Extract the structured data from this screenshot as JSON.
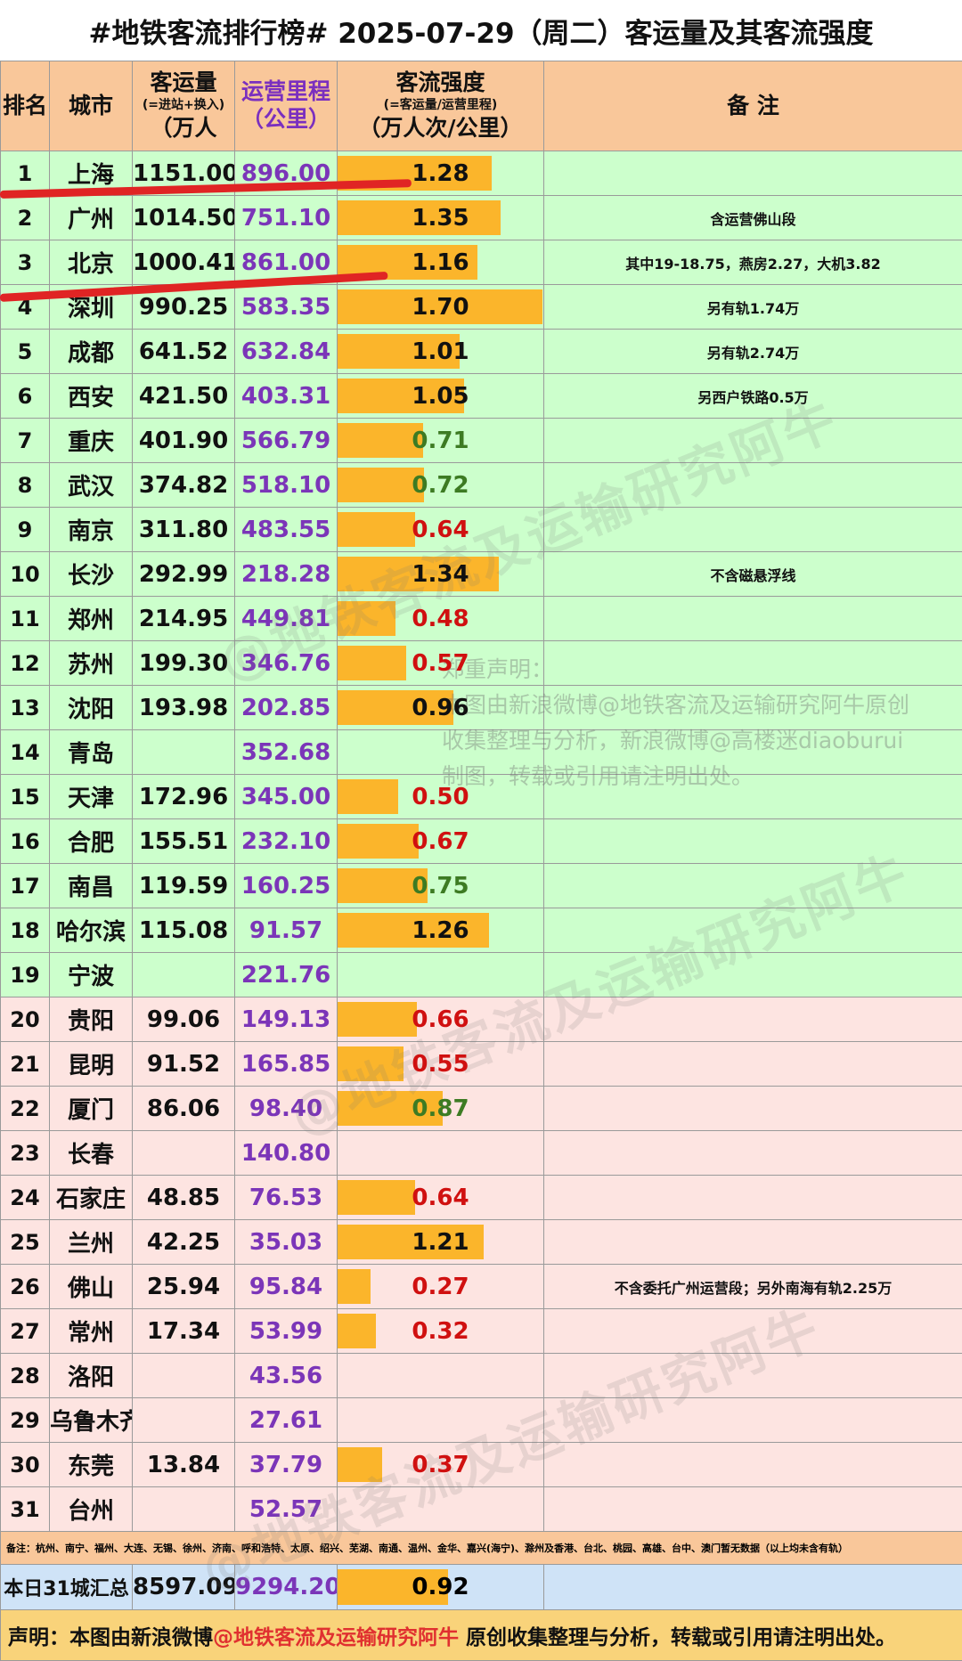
{
  "title": "#地铁客流排行榜# 2025-07-29（周二）客运量及其客流强度",
  "headers": {
    "rank": "排名",
    "city": "城市",
    "volume_l1": "客运量",
    "volume_l2": "(=进站+换入)",
    "volume_l3": "（万人",
    "mileage_l1": "运营里程",
    "mileage_l3": "（公里）",
    "intensity_l1": "客流强度",
    "intensity_l2": "(=客运量/运营里程)",
    "intensity_l3": "（万人次/公里）",
    "note": "备  注"
  },
  "rows": [
    {
      "rank": "1",
      "city": "上海",
      "volume": "1151.00",
      "mileage": "896.00",
      "intensity": "1.28",
      "intensity_value": 1.28,
      "note": ""
    },
    {
      "rank": "2",
      "city": "广州",
      "volume": "1014.50",
      "mileage": "751.10",
      "intensity": "1.35",
      "intensity_value": 1.35,
      "note": "含运营佛山段"
    },
    {
      "rank": "3",
      "city": "北京",
      "volume": "1000.41",
      "mileage": "861.00",
      "intensity": "1.16",
      "intensity_value": 1.16,
      "note": "其中19-18.75，燕房2.27，大机3.82"
    },
    {
      "rank": "4",
      "city": "深圳",
      "volume": "990.25",
      "mileage": "583.35",
      "intensity": "1.70",
      "intensity_value": 1.7,
      "note": "另有轨1.74万"
    },
    {
      "rank": "5",
      "city": "成都",
      "volume": "641.52",
      "mileage": "632.84",
      "intensity": "1.01",
      "intensity_value": 1.01,
      "note": "另有轨2.74万"
    },
    {
      "rank": "6",
      "city": "西安",
      "volume": "421.50",
      "mileage": "403.31",
      "intensity": "1.05",
      "intensity_value": 1.05,
      "note": "另西户铁路0.5万"
    },
    {
      "rank": "7",
      "city": "重庆",
      "volume": "401.90",
      "mileage": "566.79",
      "intensity": "0.71",
      "intensity_value": 0.71,
      "note": ""
    },
    {
      "rank": "8",
      "city": "武汉",
      "volume": "374.82",
      "mileage": "518.10",
      "intensity": "0.72",
      "intensity_value": 0.72,
      "note": ""
    },
    {
      "rank": "9",
      "city": "南京",
      "volume": "311.80",
      "mileage": "483.55",
      "intensity": "0.64",
      "intensity_value": 0.64,
      "note": ""
    },
    {
      "rank": "10",
      "city": "长沙",
      "volume": "292.99",
      "mileage": "218.28",
      "intensity": "1.34",
      "intensity_value": 1.34,
      "note": "不含磁悬浮线"
    },
    {
      "rank": "11",
      "city": "郑州",
      "volume": "214.95",
      "mileage": "449.81",
      "intensity": "0.48",
      "intensity_value": 0.48,
      "note": ""
    },
    {
      "rank": "12",
      "city": "苏州",
      "volume": "199.30",
      "mileage": "346.76",
      "intensity": "0.57",
      "intensity_value": 0.57,
      "note": ""
    },
    {
      "rank": "13",
      "city": "沈阳",
      "volume": "193.98",
      "mileage": "202.85",
      "intensity": "0.96",
      "intensity_value": 0.96,
      "note": ""
    },
    {
      "rank": "14",
      "city": "青岛",
      "volume": "",
      "mileage": "352.68",
      "intensity": "",
      "intensity_value": 0,
      "note": ""
    },
    {
      "rank": "15",
      "city": "天津",
      "volume": "172.96",
      "mileage": "345.00",
      "intensity": "0.50",
      "intensity_value": 0.5,
      "note": ""
    },
    {
      "rank": "16",
      "city": "合肥",
      "volume": "155.51",
      "mileage": "232.10",
      "intensity": "0.67",
      "intensity_value": 0.67,
      "note": ""
    },
    {
      "rank": "17",
      "city": "南昌",
      "volume": "119.59",
      "mileage": "160.25",
      "intensity": "0.75",
      "intensity_value": 0.75,
      "note": ""
    },
    {
      "rank": "18",
      "city": "哈尔滨",
      "volume": "115.08",
      "mileage": "91.57",
      "intensity": "1.26",
      "intensity_value": 1.26,
      "note": ""
    },
    {
      "rank": "19",
      "city": "宁波",
      "volume": "",
      "mileage": "221.76",
      "intensity": "",
      "intensity_value": 0,
      "note": ""
    },
    {
      "rank": "20",
      "city": "贵阳",
      "volume": "99.06",
      "mileage": "149.13",
      "intensity": "0.66",
      "intensity_value": 0.66,
      "note": ""
    },
    {
      "rank": "21",
      "city": "昆明",
      "volume": "91.52",
      "mileage": "165.85",
      "intensity": "0.55",
      "intensity_value": 0.55,
      "note": ""
    },
    {
      "rank": "22",
      "city": "厦门",
      "volume": "86.06",
      "mileage": "98.40",
      "intensity": "0.87",
      "intensity_value": 0.87,
      "note": ""
    },
    {
      "rank": "23",
      "city": "长春",
      "volume": "",
      "mileage": "140.80",
      "intensity": "",
      "intensity_value": 0,
      "note": ""
    },
    {
      "rank": "24",
      "city": "石家庄",
      "volume": "48.85",
      "mileage": "76.53",
      "intensity": "0.64",
      "intensity_value": 0.64,
      "note": ""
    },
    {
      "rank": "25",
      "city": "兰州",
      "volume": "42.25",
      "mileage": "35.03",
      "intensity": "1.21",
      "intensity_value": 1.21,
      "note": ""
    },
    {
      "rank": "26",
      "city": "佛山",
      "volume": "25.94",
      "mileage": "95.84",
      "intensity": "0.27",
      "intensity_value": 0.27,
      "note": "不含委托广州运营段；另外南海有轨2.25万"
    },
    {
      "rank": "27",
      "city": "常州",
      "volume": "17.34",
      "mileage": "53.99",
      "intensity": "0.32",
      "intensity_value": 0.32,
      "note": ""
    },
    {
      "rank": "28",
      "city": "洛阳",
      "volume": "",
      "mileage": "43.56",
      "intensity": "",
      "intensity_value": 0,
      "note": ""
    },
    {
      "rank": "29",
      "city": "乌鲁木齐",
      "volume": "",
      "mileage": "27.61",
      "intensity": "",
      "intensity_value": 0,
      "note": ""
    },
    {
      "rank": "30",
      "city": "东莞",
      "volume": "13.84",
      "mileage": "37.79",
      "intensity": "0.37",
      "intensity_value": 0.37,
      "note": ""
    },
    {
      "rank": "31",
      "city": "台州",
      "volume": "",
      "mileage": "52.57",
      "intensity": "",
      "intensity_value": 0,
      "note": ""
    }
  ],
  "footnote": "备注：杭州、南宁、福州、大连、无锡、徐州、济南、呼和浩特、太原、绍兴、芜湖、南通、温州、金华、嘉兴(海宁)、滁州及香港、台北、桃园、高雄、台中、澳门暂无数据（以上均未含有轨）",
  "total": {
    "label": "本日31城汇总",
    "volume": "8597.09",
    "mileage": "9294.20",
    "intensity": "0.92",
    "intensity_value": 0.92
  },
  "declaration": {
    "prefix": "声明：本图由新浪微博",
    "highlight": "@地铁客流及运输研究阿牛",
    "suffix": " 原创收集整理与分析，转载或引用请注明出处。"
  },
  "watermark": {
    "handle": "@地铁客流及运输研究阿牛",
    "notice_lines": [
      "郑重声明：",
      "本图由新浪微博@地铁客流及运输研究阿牛原创",
      "收集整理与分析，新浪微博@高楼迷diaoburui",
      "制图，转载或引用请注明出处。"
    ]
  },
  "colors": {
    "top_tier_bg": "#ccffcc",
    "lower_tier_bg": "#fde4e1",
    "header_bg": "#f9c79a",
    "bar": "#fbb52b",
    "mileage_text": "#7b35b8",
    "high_intensity": "#111111",
    "mid_intensity": "#3d7b23",
    "low_intensity": "#d01010",
    "annotation_line": "#e02424"
  }
}
